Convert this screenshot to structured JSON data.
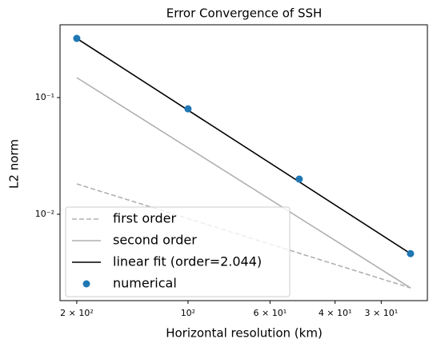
{
  "chart_data": {
    "type": "line",
    "title": "Error Convergence of SSH",
    "x_label": "Horizontal resolution (km)",
    "y_label": "L2 norm",
    "xscale": "log",
    "yscale": "log",
    "xlim": [
      222,
      22.5
    ],
    "ylim": [
      0.00182,
      0.42
    ],
    "xticks": [
      {
        "value": 200,
        "label": "2 × 10²"
      },
      {
        "value": 100,
        "label": "10²"
      },
      {
        "value": 60,
        "label": "6 × 10¹"
      },
      {
        "value": 40,
        "label": "4 × 10¹"
      },
      {
        "value": 30,
        "label": "3 × 10¹"
      }
    ],
    "yticks": [
      {
        "value": 0.1,
        "label": "10⁻¹"
      },
      {
        "value": 0.01,
        "label": "10⁻²"
      }
    ],
    "legend_loc": "lower left",
    "series": [
      {
        "name": "first order",
        "color": "#b0b0b0",
        "style": "dashed",
        "x": [
          200,
          25
        ],
        "values": [
          0.0182,
          0.00234
        ]
      },
      {
        "name": "second order",
        "color": "#b0b0b0",
        "style": "solid",
        "x": [
          200,
          25
        ],
        "values": [
          0.148,
          0.00234
        ]
      },
      {
        "name": "linear fit (order=2.044)",
        "color": "#000000",
        "style": "solid",
        "x": [
          200,
          25
        ],
        "values": [
          0.321,
          0.0046
        ]
      },
      {
        "name": "numerical",
        "color": "#1f77b4",
        "style": "markers",
        "x": [
          200,
          100,
          50,
          25
        ],
        "values": [
          0.321,
          0.08,
          0.02,
          0.0046
        ]
      }
    ]
  }
}
